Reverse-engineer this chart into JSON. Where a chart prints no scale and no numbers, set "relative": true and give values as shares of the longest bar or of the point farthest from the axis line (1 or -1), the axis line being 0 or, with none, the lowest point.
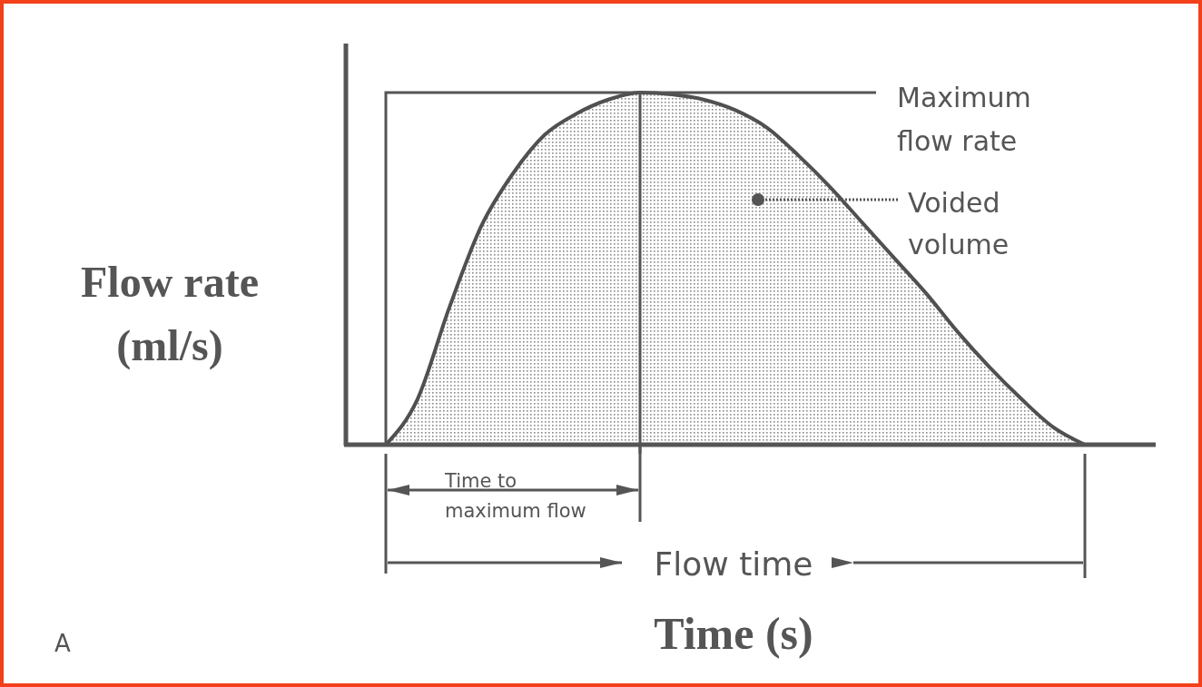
{
  "chart_data": {
    "type": "area",
    "relative": true,
    "xlabel": "Time (s)",
    "ylabel": "Flow rate (ml/s)",
    "color": "#505050",
    "categories": [
      null,
      null,
      null,
      null,
      null,
      null,
      null,
      null,
      null,
      null,
      null,
      null,
      null,
      null,
      null,
      null,
      null,
      null,
      null,
      null,
      null,
      null,
      null
    ],
    "values": [
      0,
      0.13,
      0.39,
      0.62,
      0.77,
      0.88,
      0.94,
      0.98,
      1,
      0.995,
      0.98,
      0.95,
      0.9,
      0.82,
      0.73,
      0.63,
      0.53,
      0.43,
      0.32,
      0.22,
      0.13,
      0.05,
      0
    ],
    "annotations": [
      "Voided volume",
      "Time to maximum flow",
      "Flow time",
      "A",
      "Maximum flow rate"
    ]
  }
}
